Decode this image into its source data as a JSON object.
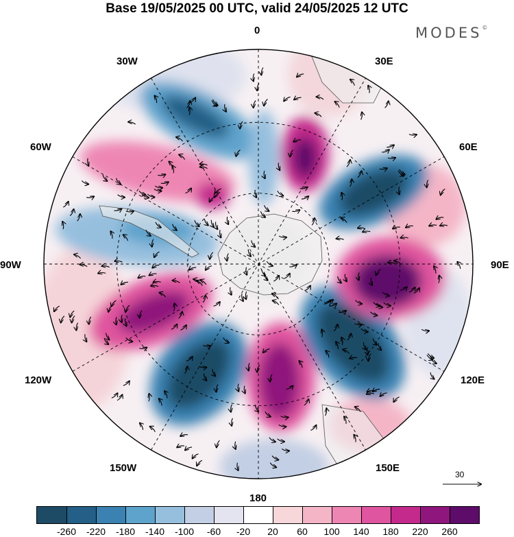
{
  "title": "Base 19/05/2025 00 UTC, valid 24/05/2025 12 UTC",
  "brand": "MODES",
  "brand_mark": "©",
  "longitude_labels": {
    "lon0": "0",
    "lon30e": "30E",
    "lon60e": "60E",
    "lon90e": "90E",
    "lon120e": "120E",
    "lon150e": "150E",
    "lon180": "180",
    "lon150w": "150W",
    "lon120w": "120W",
    "lon90w": "90W",
    "lon60w": "60W",
    "lon30w": "30W"
  },
  "vector_scale_label": "30",
  "colorbar": {
    "colors": [
      "#1d4b66",
      "#235f86",
      "#3b82b2",
      "#5ea3cc",
      "#96bfde",
      "#c3cfe4",
      "#e4e4f0",
      "#ffffff",
      "#f8d7da",
      "#f4b6c7",
      "#ee86b4",
      "#e0559f",
      "#c42a8c",
      "#8f167c",
      "#5e0c6a"
    ],
    "tick_labels": [
      "-260",
      "-220",
      "-180",
      "-140",
      "-100",
      "-60",
      "-20",
      "20",
      "60",
      "100",
      "140",
      "180",
      "220",
      "260"
    ]
  }
}
